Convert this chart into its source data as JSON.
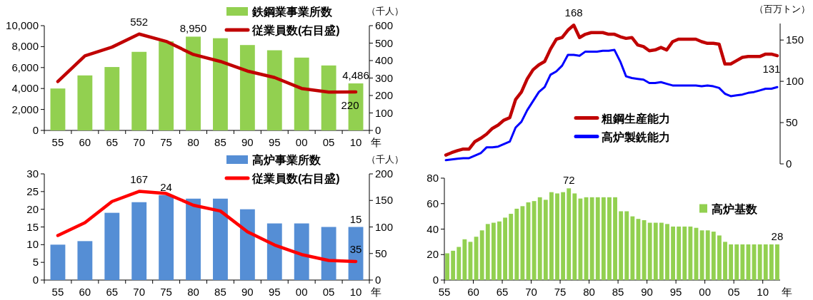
{
  "chart_data": [
    {
      "type": "bar",
      "categories": [
        "55",
        "60",
        "65",
        "70",
        "75",
        "80",
        "85",
        "90",
        "95",
        "00",
        "05",
        "10"
      ],
      "xlabel": "年",
      "y2label": "（千人）",
      "ylim": [
        0,
        10000
      ],
      "yticks": [
        {
          "value": 0,
          "label": "0"
        },
        {
          "value": 2000,
          "label": "2,000"
        },
        {
          "value": 4000,
          "label": "4,000"
        },
        {
          "value": 6000,
          "label": "6,000"
        },
        {
          "value": 8000,
          "label": "8,000"
        },
        {
          "value": 10000,
          "label": "10,000"
        }
      ],
      "y2lim": [
        0,
        600
      ],
      "y2ticks": [
        0,
        100,
        200,
        300,
        400,
        500,
        600
      ],
      "legend": "top right",
      "series": [
        {
          "name": "鉄鋼業事業所数",
          "color": "#92d050",
          "values": [
            4000,
            5250,
            6050,
            7500,
            8500,
            8950,
            8800,
            8150,
            7650,
            6950,
            6200,
            4486
          ],
          "value_labels": [
            null,
            null,
            null,
            null,
            null,
            "8,950",
            null,
            null,
            null,
            null,
            null,
            "4,486"
          ]
        },
        {
          "name": "従業員数(右目盛)",
          "type": "line",
          "axis": "y2",
          "color": "#c00000",
          "values": [
            280,
            427,
            477,
            552,
            510,
            435,
            395,
            340,
            303,
            240,
            219,
            220
          ],
          "value_labels": [
            null,
            null,
            null,
            "552",
            null,
            null,
            null,
            null,
            null,
            null,
            null,
            "220"
          ]
        }
      ]
    },
    {
      "type": "bar",
      "categories": [
        "55",
        "60",
        "65",
        "70",
        "75",
        "80",
        "85",
        "90",
        "95",
        "00",
        "05",
        "10"
      ],
      "xlabel": "年",
      "y2label": "（千人）",
      "ylim": [
        0,
        30
      ],
      "yticks": [
        0,
        5,
        10,
        15,
        20,
        25,
        30
      ],
      "y2lim": [
        0,
        200
      ],
      "y2ticks": [
        0,
        50,
        100,
        150,
        200
      ],
      "legend": "top right",
      "series": [
        {
          "name": "高炉事業所数",
          "color": "#558ed5",
          "values": [
            10,
            11,
            19,
            22,
            24,
            23,
            23,
            20,
            16,
            16,
            15,
            15
          ],
          "value_labels": [
            null,
            null,
            null,
            null,
            "24",
            null,
            null,
            null,
            null,
            null,
            null,
            "15"
          ]
        },
        {
          "name": "従業員数(右目盛)",
          "type": "line",
          "axis": "y2",
          "color": "#ff0000",
          "values": [
            84,
            108,
            148,
            167,
            163,
            141,
            130,
            91,
            66,
            48,
            37,
            35
          ],
          "value_labels": [
            null,
            null,
            null,
            "167",
            null,
            null,
            null,
            null,
            null,
            null,
            null,
            "35"
          ]
        }
      ]
    },
    {
      "type": "line",
      "categories": [
        null,
        null,
        null,
        null,
        null,
        null,
        null,
        null,
        null,
        null,
        null,
        null,
        null,
        null,
        null,
        null,
        null,
        null,
        null,
        null,
        null,
        null,
        null,
        null,
        null,
        null,
        null,
        null,
        null,
        null,
        null,
        null,
        null,
        null,
        null,
        null,
        null,
        null,
        null,
        null,
        null,
        null,
        null,
        null,
        null,
        null,
        null,
        null,
        null,
        null,
        null,
        null,
        null,
        null,
        null,
        null,
        null,
        null
      ],
      "ylabel": "（百万トン）",
      "ylim": [
        0,
        170
      ],
      "yticks": [
        0,
        50,
        100,
        150
      ],
      "legend": "center",
      "series": [
        {
          "name": "粗鋼生産能力",
          "color": "#c00000",
          "values": [
            10.7,
            13.6,
            16,
            18,
            18,
            27,
            31,
            36,
            43,
            47,
            53,
            56,
            78,
            87,
            103,
            114,
            120,
            124,
            139,
            151,
            153,
            162,
            168,
            153,
            157,
            159,
            159,
            159,
            157,
            157,
            154,
            152,
            153,
            144,
            142,
            137,
            138,
            141,
            138,
            148,
            151,
            151,
            151,
            151,
            148,
            146,
            146,
            145,
            121,
            121,
            125,
            129,
            130,
            130,
            130,
            133,
            133,
            131
          ],
          "value_labels": [
            null,
            null,
            null,
            null,
            null,
            null,
            null,
            null,
            null,
            null,
            null,
            null,
            null,
            null,
            null,
            null,
            null,
            null,
            null,
            null,
            null,
            null,
            "168",
            null,
            null,
            null,
            null,
            null,
            null,
            null,
            null,
            null,
            null,
            null,
            null,
            null,
            null,
            null,
            null,
            null,
            null,
            null,
            null,
            null,
            null,
            null,
            null,
            null,
            null,
            null,
            null,
            null,
            null,
            null,
            null,
            null,
            null,
            "131"
          ]
        },
        {
          "name": "高炉製銑能力",
          "color": "#0000ff",
          "values": [
            4.5,
            5.3,
            6.2,
            7,
            7,
            10,
            13,
            20,
            20,
            21,
            24,
            27,
            44,
            51,
            65,
            76,
            87,
            93,
            108,
            112,
            119,
            132,
            132,
            131,
            136,
            136,
            136,
            137,
            137,
            138,
            124,
            106,
            104,
            103,
            102,
            98,
            98,
            99,
            97,
            95,
            95,
            95,
            95,
            95,
            94,
            95,
            94,
            92,
            85,
            82,
            83,
            84,
            86,
            87,
            89,
            91,
            91,
            93
          ]
        }
      ]
    },
    {
      "type": "bar",
      "categories": [
        "55",
        null,
        null,
        null,
        null,
        "60",
        null,
        null,
        null,
        null,
        "65",
        null,
        null,
        null,
        null,
        "70",
        null,
        null,
        null,
        null,
        "75",
        null,
        null,
        null,
        null,
        "80",
        null,
        null,
        null,
        null,
        "85",
        null,
        null,
        null,
        null,
        "90",
        null,
        null,
        null,
        null,
        "95",
        null,
        null,
        null,
        null,
        "00",
        null,
        null,
        null,
        null,
        "05",
        null,
        null,
        null,
        null,
        "10",
        null,
        null
      ],
      "xlabel": "年",
      "ylim": [
        0,
        80
      ],
      "yticks": [
        0,
        20,
        40,
        60,
        80
      ],
      "legend": "right",
      "series": [
        {
          "name": "高炉基数",
          "color": "#92d050",
          "values": [
            21,
            23,
            26,
            32,
            30,
            34,
            39,
            44,
            45,
            46,
            49,
            52,
            56,
            58,
            61,
            62,
            65,
            63,
            69,
            68,
            69,
            72,
            68,
            64,
            65,
            65,
            65,
            65,
            65,
            65,
            54,
            54,
            50,
            48,
            47,
            45,
            45,
            45,
            44,
            42,
            42,
            42,
            42,
            41,
            39,
            39,
            38,
            35,
            30,
            28,
            28,
            28,
            28,
            28,
            28,
            28,
            28,
            28
          ],
          "value_labels": [
            null,
            null,
            null,
            null,
            null,
            null,
            null,
            null,
            null,
            null,
            null,
            null,
            null,
            null,
            null,
            null,
            null,
            null,
            null,
            null,
            null,
            "72",
            null,
            null,
            null,
            null,
            null,
            null,
            null,
            null,
            null,
            null,
            null,
            null,
            null,
            null,
            null,
            null,
            null,
            null,
            null,
            null,
            null,
            null,
            null,
            null,
            null,
            null,
            null,
            null,
            null,
            null,
            null,
            null,
            null,
            null,
            null,
            "28"
          ]
        }
      ]
    }
  ]
}
